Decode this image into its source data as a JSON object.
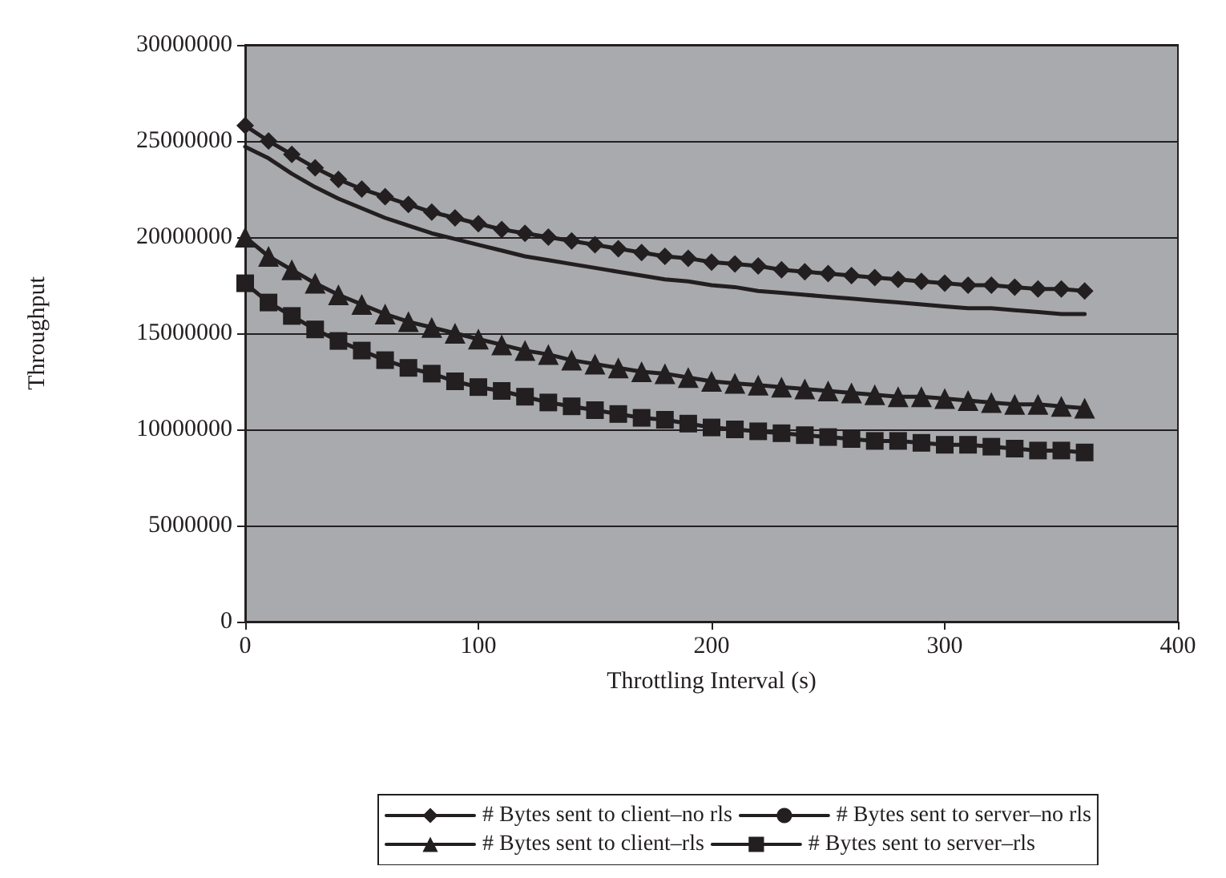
{
  "chart_data": {
    "type": "line",
    "xlabel": "Throttling Interval (s)",
    "ylabel": "Throughput",
    "x": [
      0,
      10,
      20,
      30,
      40,
      50,
      60,
      70,
      80,
      90,
      100,
      110,
      120,
      130,
      140,
      150,
      160,
      170,
      180,
      190,
      200,
      210,
      220,
      230,
      240,
      250,
      260,
      270,
      280,
      290,
      300,
      310,
      320,
      330,
      340,
      350,
      360
    ],
    "series": [
      {
        "name": "# Bytes sent to client–no rls",
        "color": "#231f20",
        "marker": "diamond",
        "values": [
          25800000,
          25000000,
          24300000,
          23600000,
          23000000,
          22500000,
          22100000,
          21700000,
          21300000,
          21000000,
          20700000,
          20400000,
          20200000,
          20000000,
          19800000,
          19600000,
          19400000,
          19200000,
          19000000,
          18900000,
          18700000,
          18600000,
          18500000,
          18300000,
          18200000,
          18100000,
          18000000,
          17900000,
          17800000,
          17700000,
          17600000,
          17500000,
          17500000,
          17400000,
          17300000,
          17300000,
          17200000
        ]
      },
      {
        "name": "# Bytes sent to server–no rls",
        "color": "#231f20",
        "marker": "none",
        "values": [
          24700000,
          24100000,
          23300000,
          22600000,
          22000000,
          21500000,
          21000000,
          20600000,
          20200000,
          19900000,
          19600000,
          19300000,
          19000000,
          18800000,
          18600000,
          18400000,
          18200000,
          18000000,
          17800000,
          17700000,
          17500000,
          17400000,
          17200000,
          17100000,
          17000000,
          16900000,
          16800000,
          16700000,
          16600000,
          16500000,
          16400000,
          16300000,
          16300000,
          16200000,
          16100000,
          16000000,
          16000000
        ]
      },
      {
        "name": "# Bytes sent to client–rls",
        "color": "#231f20",
        "marker": "triangle",
        "values": [
          20000000,
          19000000,
          18300000,
          17600000,
          17000000,
          16500000,
          16000000,
          15600000,
          15300000,
          15000000,
          14700000,
          14400000,
          14100000,
          13900000,
          13600000,
          13400000,
          13200000,
          13000000,
          12900000,
          12700000,
          12500000,
          12400000,
          12300000,
          12200000,
          12100000,
          12000000,
          11900000,
          11800000,
          11700000,
          11700000,
          11600000,
          11500000,
          11400000,
          11300000,
          11300000,
          11200000,
          11100000
        ]
      },
      {
        "name": "# Bytes sent to server–rls",
        "color": "#231f20",
        "marker": "square",
        "values": [
          17600000,
          16600000,
          15900000,
          15200000,
          14600000,
          14100000,
          13600000,
          13200000,
          12900000,
          12500000,
          12200000,
          12000000,
          11700000,
          11400000,
          11200000,
          11000000,
          10800000,
          10600000,
          10500000,
          10300000,
          10100000,
          10000000,
          9900000,
          9800000,
          9700000,
          9600000,
          9500000,
          9400000,
          9400000,
          9300000,
          9200000,
          9200000,
          9100000,
          9000000,
          8900000,
          8900000,
          8800000
        ]
      }
    ],
    "xlim": [
      0,
      400
    ],
    "xticks": [
      0,
      100,
      200,
      300,
      400
    ],
    "ylim": [
      0,
      30000000
    ],
    "yticks": [
      0,
      5000000,
      10000000,
      15000000,
      20000000,
      25000000,
      30000000
    ],
    "grid": "y",
    "legend": "bottom",
    "line_style": "solid"
  }
}
